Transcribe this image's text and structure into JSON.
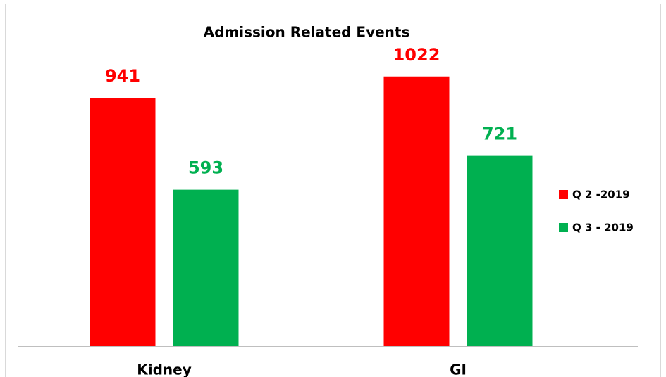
{
  "chart_data": {
    "type": "bar",
    "title": "Admission Related Events",
    "categories": [
      "Kidney",
      "GI"
    ],
    "series": [
      {
        "name": "Q 2 -2019",
        "color": "#ff0000",
        "values": [
          941,
          1022
        ]
      },
      {
        "name": "Q 3 - 2019",
        "color": "#00b050",
        "values": [
          593,
          721
        ]
      }
    ],
    "legend": "right"
  }
}
